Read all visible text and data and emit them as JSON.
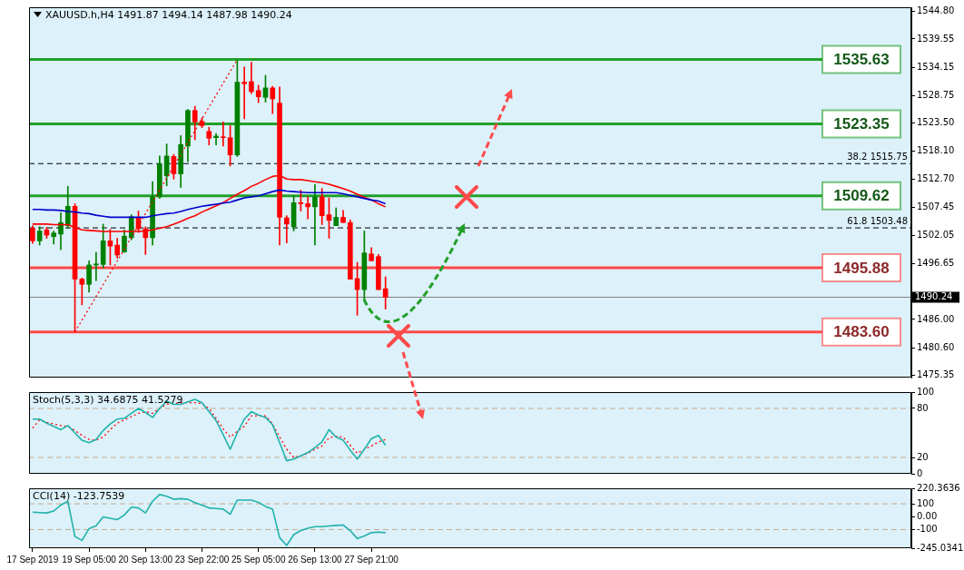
{
  "chart_data": [
    {
      "type": "candlestick",
      "title": "XAUUSD.h,H4 1491.87 1494.14 1487.98 1490.24",
      "categories": [
        null,
        null,
        null,
        null,
        null,
        null,
        null,
        null,
        null,
        null,
        null,
        null,
        null,
        null,
        null,
        null,
        null,
        null,
        null,
        null,
        null,
        null,
        null,
        null,
        null,
        null,
        null,
        null,
        null,
        null,
        null,
        null,
        null,
        null,
        null,
        null,
        null,
        null,
        null,
        null,
        null,
        null,
        null,
        null,
        null,
        null,
        null,
        null,
        null,
        null,
        null,
        null,
        null,
        null,
        null,
        null,
        null,
        null,
        null,
        null,
        null,
        null,
        null,
        null,
        null,
        null,
        null,
        null,
        null,
        null,
        null,
        null,
        null,
        null,
        null,
        null,
        null,
        null,
        null,
        null,
        null,
        null,
        null,
        null,
        null,
        null,
        null,
        null,
        null,
        null,
        null,
        null,
        null,
        null,
        null,
        null,
        null,
        null,
        null,
        null,
        null,
        null,
        null,
        null,
        null,
        null,
        null,
        null,
        null,
        null,
        null,
        null,
        null,
        null,
        null,
        null,
        null,
        null,
        null,
        null,
        null,
        null,
        null,
        null,
        null
      ],
      "ohlc": [
        [
          1503.4,
          1503.9,
          1500.5,
          1501.0
        ],
        [
          1501.0,
          1503.7,
          1500.2,
          1502.9
        ],
        [
          1503.1,
          1503.6,
          1501.5,
          1502.1
        ],
        [
          1501.8,
          1502.9,
          1500.4,
          1502.5
        ],
        [
          1502.3,
          1506.4,
          1499.3,
          1504.5
        ],
        [
          1503.9,
          1511.4,
          1503.4,
          1507.6
        ],
        [
          1507.6,
          1508.1,
          1483.6,
          1493.7
        ],
        [
          1493.7,
          1493.9,
          1488.8,
          1492.7
        ],
        [
          1492.7,
          1497.2,
          1491.2,
          1496.4
        ],
        [
          1496.4,
          1498.8,
          1493.4,
          1496.6
        ],
        [
          1496.5,
          1504.2,
          1495.8,
          1501.0
        ],
        [
          1501.0,
          1503.2,
          1496.4,
          1500.0
        ],
        [
          1500.2,
          1501.5,
          1497.7,
          1498.3
        ],
        [
          1498.9,
          1503.1,
          1498.8,
          1501.9
        ],
        [
          1501.6,
          1506.0,
          1501.2,
          1505.6
        ],
        [
          1505.5,
          1506.7,
          1502.6,
          1503.3
        ],
        [
          1503.3,
          1503.7,
          1498.4,
          1501.6
        ],
        [
          1501.6,
          1512.3,
          1500.2,
          1509.4
        ],
        [
          1509.4,
          1517.2,
          1509.1,
          1515.7
        ],
        [
          1513.4,
          1519.5,
          1511.5,
          1517.2
        ],
        [
          1517.1,
          1517.5,
          1512.8,
          1513.8
        ],
        [
          1513.8,
          1521.1,
          1511.2,
          1519.4
        ],
        [
          1519.1,
          1526.1,
          1516.1,
          1525.9
        ],
        [
          1525.9,
          1526.7,
          1520.3,
          1523.7
        ],
        [
          1523.8,
          1524.5,
          1522.6,
          1523.0
        ],
        [
          1521.9,
          1522.7,
          1519.3,
          1520.6
        ],
        [
          1520.7,
          1521.5,
          1519.3,
          1521.0
        ],
        [
          1520.8,
          1523.7,
          1519.1,
          1520.7
        ],
        [
          1520.7,
          1523.0,
          1515.3,
          1517.4
        ],
        [
          1517.4,
          1535.6,
          1517.1,
          1531.3
        ],
        [
          1531.3,
          1534.2,
          1524.3,
          1531.0
        ],
        [
          1531.4,
          1535.1,
          1529.1,
          1529.5
        ],
        [
          1529.7,
          1530.7,
          1527.4,
          1528.5
        ],
        [
          1528.4,
          1532.6,
          1527.5,
          1530.2
        ],
        [
          1530.2,
          1530.5,
          1525.3,
          1528.1
        ],
        [
          1527.3,
          1530.4,
          1500.2,
          1505.5
        ],
        [
          1505.4,
          1505.8,
          1500.6,
          1504.2
        ],
        [
          1503.7,
          1509.6,
          1502.9,
          1508.3
        ],
        [
          1508.3,
          1510.7,
          1506.7,
          1508.1
        ],
        [
          1508.1,
          1509.4,
          1505.2,
          1507.5
        ],
        [
          1507.5,
          1511.8,
          1500.2,
          1509.4
        ],
        [
          1509.4,
          1511.0,
          1504.1,
          1505.8
        ],
        [
          1506.0,
          1509.2,
          1501.5,
          1504.9
        ],
        [
          1503.9,
          1507.3,
          1503.9,
          1505.5
        ],
        [
          1505.5,
          1506.8,
          1504.5,
          1504.5
        ],
        [
          1504.5,
          1505.0,
          1493.7,
          1493.7
        ],
        [
          1493.8,
          1496.9,
          1486.8,
          1491.7
        ],
        [
          1491.7,
          1502.9,
          1489.6,
          1498.7
        ],
        [
          1498.5,
          1499.7,
          1497.2,
          1497.2
        ],
        [
          1498.0,
          1498.4,
          1491.7,
          1491.7
        ],
        [
          1491.87,
          1494.14,
          1487.98,
          1490.24
        ],
        null,
        null,
        null,
        null,
        null,
        null,
        null,
        null,
        null,
        null,
        null,
        null,
        null,
        null,
        null,
        null,
        null,
        null,
        null,
        null,
        null,
        null,
        null,
        null,
        null,
        null,
        null,
        null,
        null,
        null,
        null,
        null,
        null,
        null,
        null,
        null,
        null,
        null,
        null,
        null,
        null,
        null,
        null,
        null,
        null,
        null,
        null,
        null,
        null,
        null,
        null,
        null,
        null,
        null,
        null,
        null,
        null,
        null,
        null,
        null,
        null,
        null,
        null,
        null,
        null,
        null,
        null,
        null,
        null,
        null,
        null,
        null,
        null,
        null
      ],
      "colors": [
        "#ff0000",
        "#008000",
        "#ff0000",
        "#008000",
        "#008000",
        "#008000",
        "#ff0000",
        "#ff0000",
        "#008000",
        "#008000",
        "#008000",
        "#ff0000",
        "#ff0000",
        "#008000",
        "#008000",
        "#ff0000",
        "#ff0000",
        "#008000",
        "#008000",
        "#008000",
        "#ff0000",
        "#008000",
        "#008000",
        "#ff0000",
        "#ff0000",
        "#ff0000",
        "#008000",
        "#ff0000",
        "#ff0000",
        "#008000",
        "#ff0000",
        "#ff0000",
        "#ff0000",
        "#008000",
        "#ff0000",
        "#ff0000",
        "#ff0000",
        "#008000",
        "#ff0000",
        "#ff0000",
        "#008000",
        "#ff0000",
        "#ff0000",
        "#008000",
        "#ff0000",
        "#ff0000",
        "#ff0000",
        "#008000",
        "#ff0000",
        "#ff0000",
        "#ff0000",
        null,
        null,
        null,
        null,
        null,
        null,
        null,
        null,
        null,
        null,
        null,
        null,
        null,
        null,
        null,
        null,
        null,
        null,
        null,
        null,
        null,
        null,
        null,
        null,
        null,
        null,
        null,
        null,
        null,
        null,
        null,
        null,
        null,
        null,
        null,
        null,
        null,
        null,
        null,
        null,
        null,
        null,
        null,
        null,
        null,
        null,
        null,
        null,
        null,
        null,
        null,
        null,
        null,
        null,
        null,
        null,
        null,
        null,
        null,
        null,
        null,
        null,
        null,
        null,
        null,
        null,
        null,
        null,
        null,
        null,
        null,
        null,
        null,
        null
      ],
      "series": [
        {
          "type": "line",
          "color": "#0000cc",
          "values": [
            1507.0,
            1507.0,
            1506.9,
            1506.9,
            1506.8,
            1506.6,
            1506.5,
            1506.3,
            1506.2,
            1505.9,
            1505.7,
            1505.5,
            1505.5,
            1505.5,
            1505.5,
            1505.5,
            1505.5,
            1505.8,
            1506.0,
            1506.2,
            1506.3,
            1506.6,
            1507.0,
            1507.3,
            1507.6,
            1507.8,
            1508.0,
            1508.2,
            1508.4,
            1508.8,
            1509.2,
            1509.4,
            1509.6,
            1510.0,
            1510.4,
            1510.7,
            1510.5,
            1510.4,
            1510.3,
            1510.2,
            1510.2,
            1510.2,
            1510.2,
            1510.2,
            1510.0,
            1509.7,
            1509.4,
            1509.1,
            1508.8,
            1508.6,
            1508.1,
            null,
            null,
            null,
            null,
            null,
            null,
            null,
            null,
            null,
            null,
            null,
            null,
            null,
            null,
            null,
            null,
            null,
            null,
            null,
            null,
            null,
            null,
            null,
            null,
            null,
            null,
            null,
            null,
            null,
            null,
            null,
            null,
            null,
            null,
            null,
            null,
            null,
            null,
            null,
            null,
            null,
            null,
            null,
            null,
            null,
            null,
            null,
            null,
            null,
            null,
            null,
            null,
            null,
            null,
            null,
            null,
            null,
            null,
            null,
            null,
            null,
            null,
            null,
            null,
            null,
            null,
            null,
            null,
            null,
            null,
            null,
            null,
            null,
            null
          ]
        },
        {
          "type": "line",
          "color": "#ff0000",
          "values": [
            1504.2,
            1504.2,
            1504.2,
            1504.1,
            1504.1,
            1504.1,
            1503.6,
            1503.1,
            1503.0,
            1502.9,
            1502.8,
            1502.8,
            1502.8,
            1502.8,
            1502.8,
            1502.8,
            1502.9,
            1503.1,
            1503.4,
            1503.7,
            1504.2,
            1504.7,
            1505.3,
            1505.8,
            1506.5,
            1507.1,
            1507.7,
            1508.3,
            1509.1,
            1509.9,
            1510.6,
            1511.4,
            1512.0,
            1512.7,
            1513.3,
            1513.5,
            1512.8,
            1512.7,
            1512.7,
            1512.5,
            1512.3,
            1512.1,
            1511.8,
            1511.4,
            1511.0,
            1510.5,
            1509.9,
            1509.3,
            1508.8,
            1508.1,
            1507.5,
            null,
            null,
            null,
            null,
            null,
            null,
            null,
            null,
            null,
            null,
            null,
            null,
            null,
            null,
            null,
            null,
            null,
            null,
            null,
            null,
            null,
            null,
            null,
            null,
            null,
            null,
            null,
            null,
            null,
            null,
            null,
            null,
            null,
            null,
            null,
            null,
            null,
            null,
            null,
            null,
            null,
            null,
            null,
            null,
            null,
            null,
            null,
            null,
            null,
            null,
            null,
            null,
            null,
            null,
            null,
            null,
            null,
            null,
            null,
            null,
            null,
            null,
            null,
            null,
            null,
            null,
            null,
            null,
            null,
            null,
            null,
            null,
            null,
            null
          ]
        },
        {
          "type": "line",
          "color": "#ff0000",
          "line_style": "dotted",
          "values": [
            null,
            null,
            null,
            null,
            null,
            null,
            1483.6,
            null,
            null,
            null,
            null,
            null,
            null,
            null,
            null,
            null,
            null,
            null,
            null,
            null,
            null,
            null,
            null,
            null,
            null,
            null,
            null,
            null,
            null,
            1535.6,
            null,
            null,
            null,
            null,
            null,
            null,
            null,
            null,
            null,
            null,
            null,
            null,
            null,
            null,
            null,
            null,
            null,
            null,
            null,
            null,
            null,
            null,
            null,
            null,
            null,
            null,
            null,
            null,
            null,
            null,
            null,
            null,
            null,
            null,
            null,
            null,
            null,
            null,
            null,
            null,
            null,
            null,
            null,
            null,
            null,
            null,
            null,
            null,
            null,
            null,
            null,
            null,
            null,
            null,
            null,
            null,
            null,
            null,
            null,
            null,
            null,
            null,
            null,
            null,
            null,
            null,
            null,
            null,
            null,
            null,
            null,
            null,
            null,
            null,
            null,
            null,
            null,
            null,
            null,
            null,
            null,
            null,
            null,
            null,
            null,
            null,
            null,
            null,
            null,
            null,
            null,
            null,
            null,
            null,
            null
          ]
        }
      ],
      "ylim": [
        1474.9,
        1545.6
      ],
      "yticks": [
        {
          "value": 1544.8,
          "label": "1544.80"
        },
        1539.55,
        1534.15,
        1528.75,
        {
          "value": 1523.5,
          "label": "1523.50"
        },
        {
          "value": 1518.1,
          "label": "1518.10"
        },
        {
          "value": 1512.7,
          "label": "1512.70"
        },
        1507.45,
        1502.05,
        1496.65,
        {
          "value": 1486,
          "label": "1486.00"
        },
        {
          "value": 1480.6,
          "label": "1480.60"
        },
        1475.35
      ],
      "ref_lines": [
        {
          "axis": "y",
          "value": 1535.63,
          "label": "1535.63",
          "color": "#22a02a"
        },
        {
          "axis": "y",
          "value": 1523.35,
          "label": "1523.35",
          "color": "#22a02a"
        },
        {
          "axis": "y",
          "value": 1515.75,
          "label": "38.2 1515.75",
          "color": "#000000",
          "line_style": "dashed"
        },
        {
          "axis": "y",
          "value": 1509.62,
          "label": "1509.62",
          "color": "#22a02a"
        },
        {
          "axis": "y",
          "value": 1503.48,
          "label": "61.8 1503.48",
          "color": "#000000",
          "line_style": "dashed"
        },
        {
          "axis": "y",
          "value": 1495.88,
          "label": "1495.88",
          "color": "#ff4848"
        },
        {
          "axis": "y",
          "value": 1483.6,
          "label": "1483.60",
          "color": "#ff4848"
        },
        {
          "axis": "y",
          "value": 1490.24,
          "label": "1490.24",
          "color": "#808080",
          "line_style": "solid"
        }
      ],
      "tick_labels": "y"
    },
    {
      "type": "line",
      "title": "Stoch(5,3,3) 34.6875 41.5279",
      "categories": [
        null,
        null,
        null,
        null,
        null,
        null,
        null,
        null,
        null,
        null,
        null,
        null,
        null,
        null,
        null,
        null,
        null,
        null,
        null,
        null,
        null,
        null,
        null,
        null,
        null,
        null,
        null,
        null,
        null,
        null,
        null,
        null,
        null,
        null,
        null,
        null,
        null,
        null,
        null,
        null,
        null,
        null,
        null,
        null,
        null,
        null,
        null,
        null,
        null,
        null,
        null,
        null,
        null,
        null,
        null,
        null,
        null,
        null,
        null,
        null,
        null,
        null,
        null,
        null,
        null,
        null,
        null,
        null,
        null,
        null,
        null,
        null,
        null,
        null,
        null,
        null,
        null,
        null,
        null,
        null,
        null,
        null,
        null,
        null,
        null,
        null,
        null,
        null,
        null,
        null,
        null,
        null,
        null,
        null,
        null,
        null,
        null,
        null,
        null,
        null,
        null,
        null,
        null,
        null,
        null,
        null,
        null,
        null,
        null,
        null,
        null,
        null,
        null,
        null,
        null,
        null,
        null,
        null,
        null,
        null,
        null,
        null,
        null,
        null,
        null
      ],
      "series": [
        {
          "color": "#20b2aa",
          "values": [
            67,
            67,
            62,
            58,
            54,
            59,
            50,
            41,
            38,
            42,
            53,
            61,
            67,
            68,
            74,
            80,
            75,
            69,
            80,
            89,
            85,
            85,
            88,
            91,
            87,
            76,
            65,
            48,
            30,
            50,
            67,
            76,
            72,
            69,
            60,
            38,
            16,
            18,
            22,
            26,
            32,
            39,
            54,
            45,
            41,
            29,
            18,
            30,
            43,
            47,
            35,
            null,
            null,
            null,
            null,
            null,
            null,
            null,
            null,
            null,
            null,
            null,
            null,
            null,
            null,
            null,
            null,
            null,
            null,
            null,
            null,
            null,
            null,
            null,
            null,
            null,
            null,
            null,
            null,
            null,
            null,
            null,
            null,
            null,
            null,
            null,
            null,
            null,
            null,
            null,
            null,
            null,
            null,
            null,
            null,
            null,
            null,
            null,
            null,
            null,
            null,
            null,
            null,
            null,
            null,
            null,
            null,
            null,
            null,
            null,
            null,
            null,
            null,
            null,
            null,
            null,
            null,
            null,
            null,
            null,
            null,
            null,
            null,
            null,
            null
          ]
        },
        {
          "color": "#ff0000",
          "line_style": "dotted",
          "values": [
            56,
            66,
            63,
            61,
            59,
            58,
            53,
            47,
            42,
            41,
            45,
            54,
            62,
            66,
            70,
            74,
            76,
            74,
            80,
            85,
            86,
            87,
            87,
            87,
            86,
            80,
            68,
            55,
            45,
            52,
            58,
            71,
            71,
            71,
            61,
            45,
            30,
            20,
            22,
            25,
            30,
            34,
            44,
            46,
            45,
            35,
            25,
            30,
            34,
            39,
            42,
            null,
            null,
            null,
            null,
            null,
            null,
            null,
            null,
            null,
            null,
            null,
            null,
            null,
            null,
            null,
            null,
            null,
            null,
            null,
            null,
            null,
            null,
            null,
            null,
            null,
            null,
            null,
            null,
            null,
            null,
            null,
            null,
            null,
            null,
            null,
            null,
            null,
            null,
            null,
            null,
            null,
            null,
            null,
            null,
            null,
            null,
            null,
            null,
            null,
            null,
            null,
            null,
            null,
            null,
            null,
            null,
            null,
            null,
            null,
            null,
            null,
            null,
            null,
            null,
            null,
            null,
            null,
            null,
            null,
            null,
            null,
            null,
            null,
            null
          ]
        }
      ],
      "ylim": [
        0,
        100
      ],
      "yticks": [
        0,
        20,
        80,
        100
      ],
      "ref_lines": [
        {
          "axis": "y",
          "value": 80,
          "color": "#c8a888",
          "line_style": "dashed"
        },
        {
          "axis": "y",
          "value": 20,
          "color": "#c8a888",
          "line_style": "dashed"
        }
      ],
      "tick_labels": "y"
    },
    {
      "type": "line",
      "title": "CCI(14) -123.7539",
      "categories": [
        "17 Sep 2019",
        null,
        null,
        null,
        null,
        null,
        null,
        null,
        "19 Sep 05:00",
        null,
        null,
        null,
        null,
        null,
        null,
        null,
        "20 Sep 13:00",
        null,
        null,
        null,
        null,
        null,
        null,
        null,
        "23 Sep 22:00",
        null,
        null,
        null,
        null,
        null,
        null,
        null,
        "25 Sep 05:00",
        null,
        null,
        null,
        null,
        null,
        null,
        null,
        "26 Sep 13:00",
        null,
        null,
        null,
        null,
        null,
        null,
        null,
        "27 Sep 21:00",
        null,
        null,
        null,
        null,
        null,
        null,
        null,
        null,
        null,
        null,
        null,
        null,
        null,
        null,
        null,
        null,
        null,
        null,
        null,
        null,
        null,
        null,
        null,
        null,
        null,
        null,
        null,
        null,
        null,
        null,
        null,
        null,
        null,
        null,
        null,
        null,
        null,
        null,
        null,
        null,
        null,
        null,
        null,
        null,
        null,
        null,
        null,
        null,
        null,
        null,
        null,
        null,
        null,
        null,
        null,
        null,
        null,
        null,
        null,
        null,
        null,
        null,
        null,
        null,
        null,
        null,
        null,
        null,
        null,
        null,
        null,
        null,
        null,
        null,
        null,
        null
      ],
      "series": [
        {
          "color": "#20b2aa",
          "values": [
            35,
            32,
            29,
            44,
            90,
            120,
            -154,
            -184,
            -93,
            -70,
            -2,
            -12,
            -23,
            13,
            74,
            68,
            29,
            120,
            172,
            159,
            135,
            140,
            135,
            110,
            90,
            68,
            63,
            59,
            19,
            129,
            129,
            129,
            111,
            80,
            59,
            -163,
            -224,
            -139,
            -108,
            -90,
            -78,
            -78,
            -72,
            -68,
            -65,
            -108,
            -170,
            -150,
            -124,
            -120,
            -124,
            null,
            null,
            null,
            null,
            null,
            null,
            null,
            null,
            null,
            null,
            null,
            null,
            null,
            null,
            null,
            null,
            null,
            null,
            null,
            null,
            null,
            null,
            null,
            null,
            null,
            null,
            null,
            null,
            null,
            null,
            null,
            null,
            null,
            null,
            null,
            null,
            null,
            null,
            null,
            null,
            null,
            null,
            null,
            null,
            null,
            null,
            null,
            null,
            null,
            null,
            null,
            null,
            null,
            null,
            null,
            null,
            null,
            null,
            null,
            null,
            null,
            null,
            null,
            null,
            null,
            null,
            null,
            null,
            null,
            null,
            null,
            null,
            null,
            null
          ]
        }
      ],
      "ylim": [
        -245.0341,
        220.3636
      ],
      "yticks": [
        -245.0341,
        -100,
        {
          "value": 0,
          "label": "0.00"
        },
        100,
        220.3636
      ],
      "ref_lines": [
        {
          "axis": "y",
          "value": 100,
          "color": "#c8a888",
          "line_style": "dashed"
        },
        {
          "axis": "y",
          "value": -100,
          "color": "#c8a888",
          "line_style": "dashed"
        }
      ]
    }
  ]
}
